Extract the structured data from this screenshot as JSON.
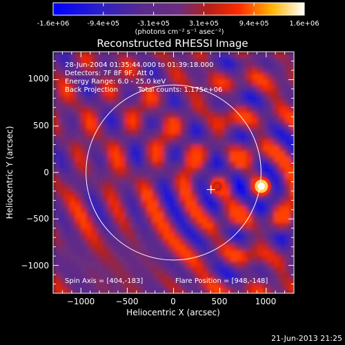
{
  "colorbar": {
    "tick_labels": [
      "-1.6e+06",
      "-9.4e+05",
      "-3.1e+05",
      "3.1e+05",
      "9.4e+05",
      "1.6e+06"
    ],
    "unit_label": "(photons cm⁻² s⁻¹ asec⁻²)",
    "range": [
      -1600000.0,
      1600000.0
    ]
  },
  "chart_data": {
    "type": "heatmap",
    "title": "Reconstructed RHESSI Image",
    "xlabel": "Heliocentric X (arcsec)",
    "ylabel": "Heliocentric Y (arcsec)",
    "xlim": [
      -1300,
      1300
    ],
    "ylim": [
      -1300,
      1300
    ],
    "x_ticks": [
      -1000,
      -500,
      0,
      500,
      1000
    ],
    "y_ticks": [
      1000,
      500,
      0,
      -500,
      -1000
    ],
    "x_tick_labels": [
      "−1000",
      "−500",
      "0",
      "500",
      "1000"
    ],
    "y_tick_labels": [
      "1000",
      "500",
      "0",
      "−500",
      "−1000"
    ],
    "solar_limb_radius_arcsec": 945,
    "sources": [
      {
        "x": 948,
        "y": -148,
        "peak": 1600000.0,
        "sigma_arcsec": 55
      },
      {
        "x": 470,
        "y": -150,
        "peak": 1100000.0,
        "sigma_arcsec": 40
      }
    ],
    "spin_axis_marker": {
      "x": 404,
      "y": -183
    },
    "annotations": {
      "datetime": "28-Jun-2004 01:35:44.000 to 01:39:18.000",
      "detectors": "Detectors: 7F 8F 9F, Att 0",
      "energy": "Energy Range: 6.0 - 25.0 keV",
      "method": "Back Projection",
      "counts": "Total counts: 1.175e+06",
      "spin_axis": "Spin Axis = [404,-183]",
      "flare_position": "Flare Position = [948,-148]"
    }
  },
  "footer": {
    "timestamp": "21-Jun-2013 21:25"
  },
  "colors": {
    "background": "#000000",
    "text": "#ffffff",
    "limb_circle": "#ffffff",
    "colormap": [
      "#0000ff",
      "#2222bb",
      "#5a2a8a",
      "#6a2d80",
      "#b51e12",
      "#ff2a00",
      "#ffb300",
      "#ffffff"
    ]
  }
}
